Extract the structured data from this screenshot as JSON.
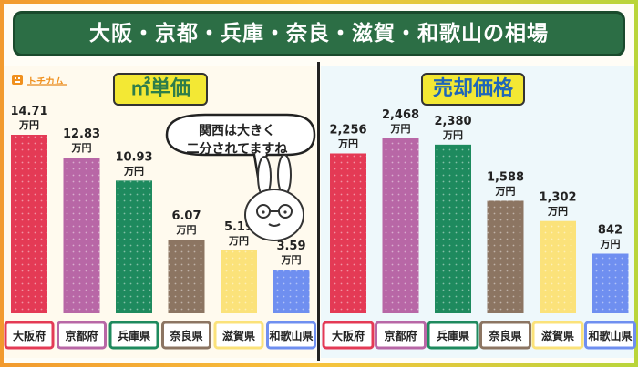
{
  "title": "大阪・京都・兵庫・奈良・滋賀・和歌山の相場",
  "logo": {
    "text": "トチカム"
  },
  "speech_bubble": {
    "line1": "関西は大きく",
    "line2": "二分されてますね"
  },
  "colors": {
    "osaka": "#e43a55",
    "kyoto": "#b867a6",
    "hyogo": "#1e8a5e",
    "nara": "#8c7562",
    "shiga": "#fbe27a",
    "wakayama": "#6f8ff0"
  },
  "chart_data": [
    {
      "type": "bar",
      "title": "㎡単価",
      "categories": [
        "大阪府",
        "京都府",
        "兵庫県",
        "奈良県",
        "滋賀県",
        "和歌山県"
      ],
      "values": [
        14.71,
        12.83,
        10.93,
        6.07,
        5.19,
        3.59
      ],
      "value_labels": [
        "14.71",
        "12.83",
        "10.93",
        "6.07",
        "5.19",
        "3.59"
      ],
      "unit": "万円"
    },
    {
      "type": "bar",
      "title": "売却価格",
      "categories": [
        "大阪府",
        "京都府",
        "兵庫県",
        "奈良県",
        "滋賀県",
        "和歌山県"
      ],
      "values": [
        2256,
        2468,
        2380,
        1588,
        1302,
        842
      ],
      "value_labels": [
        "2,256",
        "2,468",
        "2,380",
        "1,588",
        "1,302",
        "842"
      ],
      "unit": "万円"
    }
  ]
}
